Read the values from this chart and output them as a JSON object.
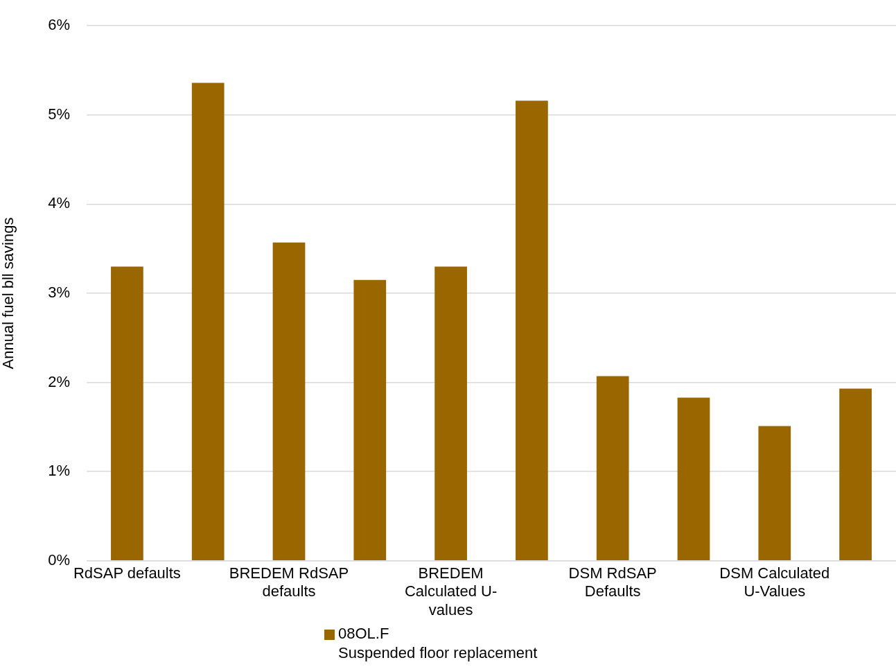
{
  "chart_data": {
    "type": "bar",
    "ylabel": "Annual fuel bll savings",
    "categories": [
      "RdSAP defaults",
      null,
      "BREDEM RdSAP defaults",
      null,
      "BREDEM Calculated U-values",
      null,
      "DSM RdSAP Defaults",
      null,
      "DSM Calculated U-Values",
      null
    ],
    "series": [
      {
        "name": "08OL.F\nSuspended floor replacement",
        "color": "#996600",
        "values": [
          3.3,
          5.36,
          3.57,
          3.15,
          3.3,
          5.16,
          2.07,
          1.83,
          1.51,
          1.93
        ]
      }
    ],
    "ylim": [
      0,
      6
    ],
    "yticks": [
      {
        "value": 0,
        "label": "0%"
      },
      {
        "value": 1,
        "label": "1%"
      },
      {
        "value": 2,
        "label": "2%"
      },
      {
        "value": 3,
        "label": "3%"
      },
      {
        "value": 4,
        "label": "4%"
      },
      {
        "value": 5,
        "label": "5%"
      },
      {
        "value": 6,
        "label": "6%"
      }
    ],
    "grid": "y",
    "legend": "bottom"
  }
}
